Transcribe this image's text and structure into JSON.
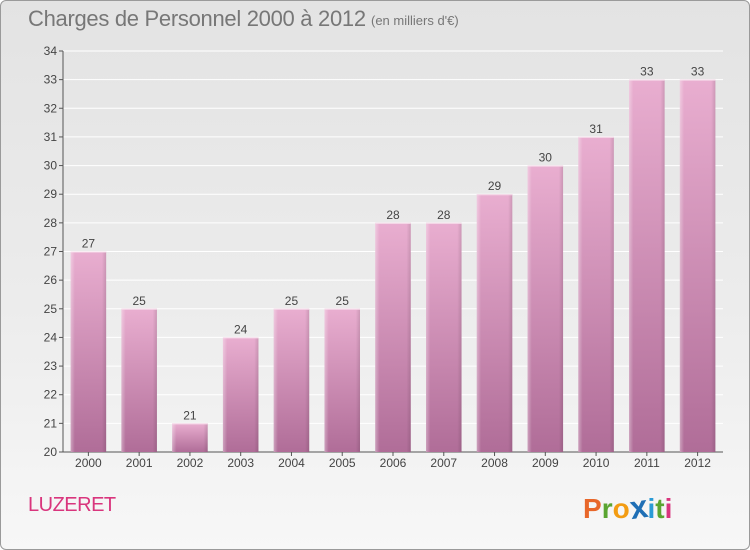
{
  "header": {
    "title": "Charges de Personnel 2000 à 2012",
    "subtitle": "(en milliers d'€)"
  },
  "footer": {
    "commune": "LUZERET",
    "logo_letters": [
      "P",
      "r",
      "o",
      "x",
      "i",
      "t",
      "i"
    ],
    "logo_colors": [
      "#e8672a",
      "#5aa531",
      "#f39c12",
      "#1f6fb5",
      "#2a9bd6",
      "#5aa531",
      "#d9357d"
    ]
  },
  "chart_data": {
    "type": "bar",
    "categories": [
      "2000",
      "2001",
      "2002",
      "2003",
      "2004",
      "2005",
      "2006",
      "2007",
      "2008",
      "2009",
      "2010",
      "2011",
      "2012"
    ],
    "values": [
      27,
      25,
      21,
      24,
      25,
      25,
      28,
      28,
      29,
      30,
      31,
      33,
      33
    ],
    "data_labels": [
      "27",
      "25",
      "21",
      "24",
      "25",
      "25",
      "28",
      "28",
      "29",
      "30",
      "31",
      "33",
      "33"
    ],
    "y_ticks": [
      "20",
      "21",
      "22",
      "23",
      "24",
      "25",
      "26",
      "27",
      "28",
      "29",
      "30",
      "31",
      "32",
      "33",
      "34"
    ],
    "ylim": [
      20,
      34
    ],
    "grid": true,
    "bar_color": "#e2a6c8",
    "xlabel": "",
    "ylabel": ""
  }
}
